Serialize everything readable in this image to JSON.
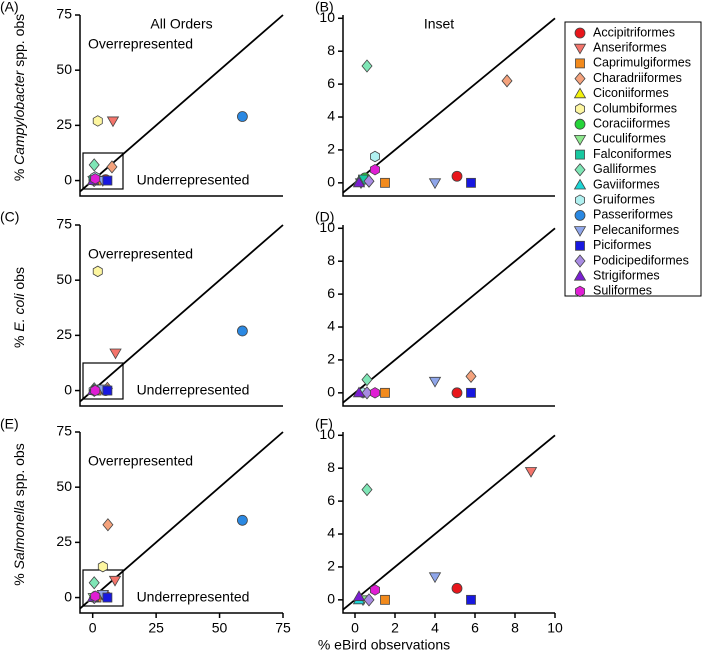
{
  "xlabel": "% eBird observations",
  "legend": [
    {
      "name": "Accipitriformes",
      "color": "#e8161b",
      "marker": "circle"
    },
    {
      "name": "Anseriformes",
      "color": "#f4746b",
      "marker": "triangle-down"
    },
    {
      "name": "Caprimulgiformes",
      "color": "#f28a1c",
      "marker": "square"
    },
    {
      "name": "Charadriiformes",
      "color": "#f4a27c",
      "marker": "diamond"
    },
    {
      "name": "Ciconiiformes",
      "color": "#f2f20c",
      "marker": "triangle-up"
    },
    {
      "name": "Columbiformes",
      "color": "#fdf6a0",
      "marker": "hexagon"
    },
    {
      "name": "Coraciiformes",
      "color": "#26d43a",
      "marker": "circle"
    },
    {
      "name": "Cuculiformes",
      "color": "#8de88d",
      "marker": "triangle-down"
    },
    {
      "name": "Falconiformes",
      "color": "#18c8a0",
      "marker": "square"
    },
    {
      "name": "Galliformes",
      "color": "#7fe6b6",
      "marker": "diamond"
    },
    {
      "name": "Gaviiformes",
      "color": "#1cd6d6",
      "marker": "triangle-up"
    },
    {
      "name": "Gruiformes",
      "color": "#b0f0f0",
      "marker": "hexagon"
    },
    {
      "name": "Passeriformes",
      "color": "#2a88e2",
      "marker": "circle"
    },
    {
      "name": "Pelecaniformes",
      "color": "#8fa6ea",
      "marker": "triangle-down"
    },
    {
      "name": "Piciformes",
      "color": "#1818e0",
      "marker": "square"
    },
    {
      "name": "Podicipediformes",
      "color": "#a88be2",
      "marker": "diamond"
    },
    {
      "name": "Strigiformes",
      "color": "#7a1ed2",
      "marker": "triangle-up"
    },
    {
      "name": "Suliformes",
      "color": "#e01ed4",
      "marker": "hexagon"
    }
  ],
  "chart_data": [
    {
      "type": "scatter",
      "label": "(A)",
      "title": "All Orders",
      "annotations": [
        "Overrepresented",
        "Underrepresented"
      ],
      "ylabel": [
        "% ",
        "Campylobacter",
        " spp. obs"
      ],
      "xlim": [
        -5,
        75
      ],
      "ylim": [
        -7,
        75
      ],
      "yticks": [
        0,
        25,
        50,
        75
      ],
      "x": [
        5.1,
        8,
        1.5,
        7.6,
        null,
        2,
        0.5,
        0.3,
        0.4,
        0.6,
        0.2,
        1,
        59,
        4,
        5.8,
        0.7,
        0.2,
        1
      ],
      "y": [
        0.4,
        27,
        0,
        6.2,
        null,
        27,
        0.3,
        0,
        0.2,
        7.1,
        0.1,
        1.6,
        29,
        0,
        0,
        0.1,
        0,
        0.8
      ]
    },
    {
      "type": "scatter",
      "label": "(B)",
      "title": "Inset",
      "xlim": [
        -0.6,
        10
      ],
      "ylim": [
        -0.8,
        10.2
      ],
      "yticks": [
        0,
        2,
        4,
        6,
        8,
        10
      ],
      "x": [
        5.1,
        null,
        1.5,
        7.6,
        null,
        null,
        0.5,
        0.3,
        0.4,
        0.6,
        0.2,
        1,
        null,
        4,
        5.8,
        0.7,
        0.2,
        1
      ],
      "y": [
        0.4,
        null,
        0,
        6.2,
        null,
        null,
        0.3,
        0,
        0.2,
        7.1,
        0.1,
        1.6,
        null,
        0,
        0,
        0.1,
        0,
        0.8
      ]
    },
    {
      "type": "scatter",
      "label": "(C)",
      "annotations": [
        "Overrepresented",
        "Underrepresented"
      ],
      "ylabel": [
        "% ",
        "E. coli",
        " obs"
      ],
      "xlim": [
        -5,
        75
      ],
      "ylim": [
        -7,
        75
      ],
      "yticks": [
        0,
        25,
        50,
        75
      ],
      "x": [
        5.1,
        9,
        1.5,
        5.8,
        null,
        2,
        null,
        null,
        null,
        0.6,
        null,
        0.4,
        59,
        4,
        5.8,
        0.6,
        0.2,
        1
      ],
      "y": [
        0,
        17,
        0,
        1,
        null,
        54,
        null,
        null,
        null,
        0.8,
        null,
        0,
        27,
        0.7,
        0,
        0,
        0,
        0
      ]
    },
    {
      "type": "scatter",
      "label": "(D)",
      "xlim": [
        -0.6,
        10
      ],
      "ylim": [
        -0.8,
        10.2
      ],
      "yticks": [
        0,
        2,
        4,
        6,
        8,
        10
      ],
      "x": [
        5.1,
        null,
        1.5,
        5.8,
        null,
        null,
        null,
        null,
        null,
        0.6,
        null,
        0.4,
        null,
        4,
        5.8,
        0.6,
        0.2,
        1
      ],
      "y": [
        0,
        null,
        0,
        1,
        null,
        null,
        null,
        null,
        null,
        0.8,
        null,
        0,
        null,
        0.7,
        0,
        0,
        0,
        0
      ]
    },
    {
      "type": "scatter",
      "label": "(E)",
      "annotations": [
        "Overrepresented",
        "Underrepresented"
      ],
      "ylabel": [
        "% ",
        "Salmonella",
        " spp. obs"
      ],
      "xlim": [
        -5,
        75
      ],
      "ylim": [
        -7,
        75
      ],
      "yticks": [
        0,
        25,
        50,
        75
      ],
      "xticks": [
        0,
        25,
        50,
        75
      ],
      "x": [
        5.1,
        8.8,
        1.5,
        6,
        null,
        4,
        null,
        0.4,
        null,
        0.6,
        0.2,
        null,
        59,
        4,
        5.8,
        0.7,
        0.2,
        1
      ],
      "y": [
        0.7,
        7.8,
        0,
        33,
        null,
        14,
        null,
        0,
        null,
        6.7,
        0,
        null,
        35,
        1.4,
        0,
        0,
        0.2,
        0.6
      ]
    },
    {
      "type": "scatter",
      "label": "(F)",
      "xlim": [
        -0.6,
        10
      ],
      "ylim": [
        -0.8,
        10.2
      ],
      "yticks": [
        0,
        2,
        4,
        6,
        8,
        10
      ],
      "xticks": [
        0,
        2,
        4,
        6,
        8,
        10
      ],
      "x": [
        5.1,
        8.8,
        1.5,
        null,
        null,
        null,
        null,
        0.4,
        null,
        0.6,
        0.2,
        null,
        null,
        4,
        5.8,
        0.7,
        0.2,
        1
      ],
      "y": [
        0.7,
        7.8,
        0,
        null,
        null,
        null,
        null,
        0,
        null,
        6.7,
        0,
        null,
        null,
        1.4,
        0,
        0,
        0.2,
        0.6
      ]
    }
  ]
}
